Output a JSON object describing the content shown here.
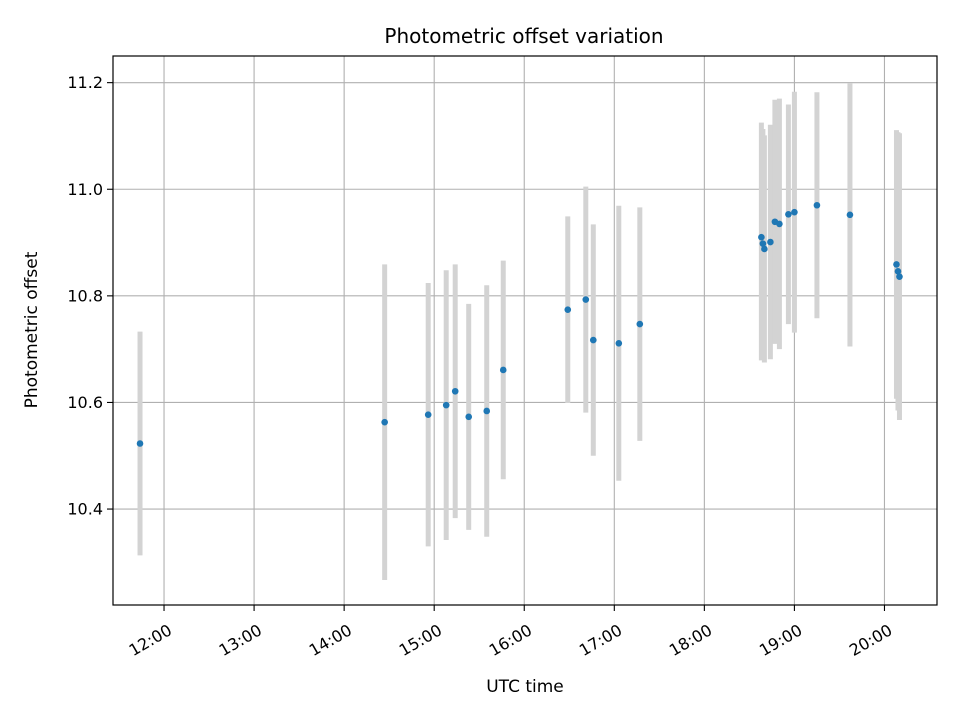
{
  "chart_data": {
    "type": "scatter",
    "title": "Photometric offset variation",
    "xlabel": "UTC time",
    "ylabel": "Photometric offset",
    "x_ticks": [
      "12:00",
      "13:00",
      "14:00",
      "15:00",
      "16:00",
      "17:00",
      "18:00",
      "19:00",
      "20:00"
    ],
    "y_ticks": [
      "10.4",
      "10.6",
      "10.8",
      "11.0",
      "11.2"
    ],
    "xlim": [
      "11:26",
      "20:35"
    ],
    "ylim": [
      10.22,
      11.25
    ],
    "grid": true,
    "colors": {
      "marker": "#1f77b4",
      "errorbar": "#d3d3d3",
      "grid": "#b0b0b0",
      "axes": "#000000"
    },
    "points": [
      {
        "x": "11:44",
        "y": 10.523,
        "ylo": 10.313,
        "yhi": 10.733
      },
      {
        "x": "14:27",
        "y": 10.563,
        "ylo": 10.267,
        "yhi": 10.859
      },
      {
        "x": "14:56",
        "y": 10.577,
        "ylo": 10.33,
        "yhi": 10.824
      },
      {
        "x": "15:08",
        "y": 10.595,
        "ylo": 10.342,
        "yhi": 10.848
      },
      {
        "x": "15:14",
        "y": 10.621,
        "ylo": 10.383,
        "yhi": 10.859
      },
      {
        "x": "15:23",
        "y": 10.573,
        "ylo": 10.361,
        "yhi": 10.785
      },
      {
        "x": "15:35",
        "y": 10.584,
        "ylo": 10.348,
        "yhi": 10.82
      },
      {
        "x": "15:46",
        "y": 10.661,
        "ylo": 10.456,
        "yhi": 10.866
      },
      {
        "x": "16:29",
        "y": 10.774,
        "ylo": 10.599,
        "yhi": 10.949
      },
      {
        "x": "16:41",
        "y": 10.793,
        "ylo": 10.581,
        "yhi": 11.005
      },
      {
        "x": "16:46",
        "y": 10.717,
        "ylo": 10.5,
        "yhi": 10.934
      },
      {
        "x": "17:03",
        "y": 10.711,
        "ylo": 10.453,
        "yhi": 10.969
      },
      {
        "x": "17:17",
        "y": 10.747,
        "ylo": 10.528,
        "yhi": 10.966
      },
      {
        "x": "18:38",
        "y": 10.91,
        "ylo": 10.679,
        "yhi": 11.125
      },
      {
        "x": "18:39",
        "y": 10.898,
        "ylo": 10.683,
        "yhi": 11.113
      },
      {
        "x": "18:40",
        "y": 10.888,
        "ylo": 10.675,
        "yhi": 11.101
      },
      {
        "x": "18:44",
        "y": 10.901,
        "ylo": 10.681,
        "yhi": 11.121
      },
      {
        "x": "18:47",
        "y": 10.939,
        "ylo": 10.71,
        "yhi": 11.168
      },
      {
        "x": "18:50",
        "y": 10.935,
        "ylo": 10.7,
        "yhi": 11.17
      },
      {
        "x": "18:56",
        "y": 10.953,
        "ylo": 10.747,
        "yhi": 11.159
      },
      {
        "x": "19:00",
        "y": 10.957,
        "ylo": 10.731,
        "yhi": 11.183
      },
      {
        "x": "19:15",
        "y": 10.97,
        "ylo": 10.758,
        "yhi": 11.182
      },
      {
        "x": "19:37",
        "y": 10.952,
        "ylo": 10.705,
        "yhi": 11.199
      },
      {
        "x": "20:08",
        "y": 10.859,
        "ylo": 10.607,
        "yhi": 11.111
      },
      {
        "x": "20:09",
        "y": 10.846,
        "ylo": 10.585,
        "yhi": 11.107
      },
      {
        "x": "20:10",
        "y": 10.836,
        "ylo": 10.567,
        "yhi": 11.105
      }
    ]
  }
}
